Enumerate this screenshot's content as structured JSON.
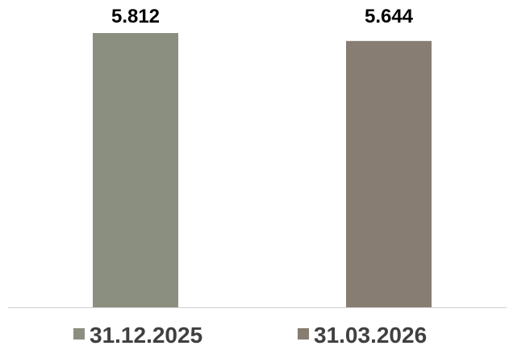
{
  "chart_data": {
    "type": "bar",
    "categories": [
      "31.12.2025",
      "31.03.2026"
    ],
    "series": [
      {
        "values": [
          5.812,
          5.644
        ]
      }
    ],
    "data_labels": [
      "5.812",
      "5.644"
    ],
    "colors": [
      "#8a8f7f",
      "#877d72"
    ],
    "ylim": [
      0,
      6
    ],
    "grid": false,
    "legend": "bottom",
    "legend_entries": [
      "31.12.2025",
      "31.03.2026"
    ]
  }
}
